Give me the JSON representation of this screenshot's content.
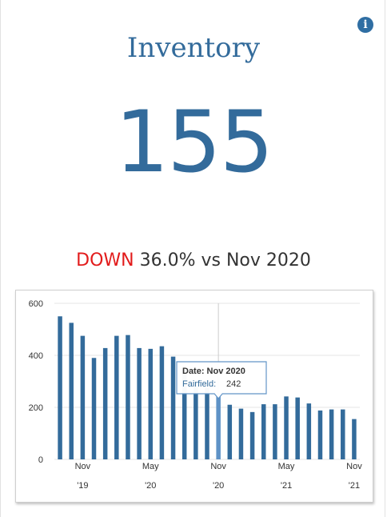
{
  "header": {
    "title": "Inventory",
    "value": "155",
    "change_direction": "DOWN",
    "change_text": "36.0% vs Nov 2020",
    "info_icon": "info-icon"
  },
  "colors": {
    "accent": "#336b9b",
    "bar": "#336b9b",
    "bar_highlight": "#5e92c6",
    "down": "#e21b1b"
  },
  "tooltip": {
    "date_label": "Date: Nov 2020",
    "series_label": "Fairfield:",
    "series_value": "242"
  },
  "chart_data": {
    "type": "bar",
    "categories": [
      "Sep 2019",
      "Oct 2019",
      "Nov 2019",
      "Dec 2019",
      "Jan 2020",
      "Feb 2020",
      "Mar 2020",
      "Apr 2020",
      "May 2020",
      "Jun 2020",
      "Jul 2020",
      "Aug 2020",
      "Sep 2020",
      "Oct 2020",
      "Nov 2020",
      "Dec 2020",
      "Jan 2021",
      "Feb 2021",
      "Mar 2021",
      "Apr 2021",
      "May 2021",
      "Jun 2021",
      "Jul 2021",
      "Aug 2021",
      "Sep 2021",
      "Oct 2021",
      "Nov 2021"
    ],
    "series": [
      {
        "name": "Fairfield",
        "values": [
          550,
          525,
          475,
          390,
          428,
          475,
          478,
          428,
          425,
          435,
          395,
          345,
          300,
          275,
          242,
          210,
          195,
          182,
          212,
          212,
          242,
          238,
          215,
          188,
          192,
          192,
          155
        ]
      }
    ],
    "highlight_index": 14,
    "ylim": [
      0,
      600
    ],
    "yticks": [
      0,
      200,
      400,
      600
    ],
    "xtick_labels": [
      {
        "index": 2,
        "month": "Nov",
        "year": "'19"
      },
      {
        "index": 8,
        "month": "May",
        "year": "'20"
      },
      {
        "index": 14,
        "month": "Nov",
        "year": "'20"
      },
      {
        "index": 20,
        "month": "May",
        "year": "'21"
      },
      {
        "index": 26,
        "month": "Nov",
        "year": "'21"
      }
    ],
    "grid": true
  }
}
